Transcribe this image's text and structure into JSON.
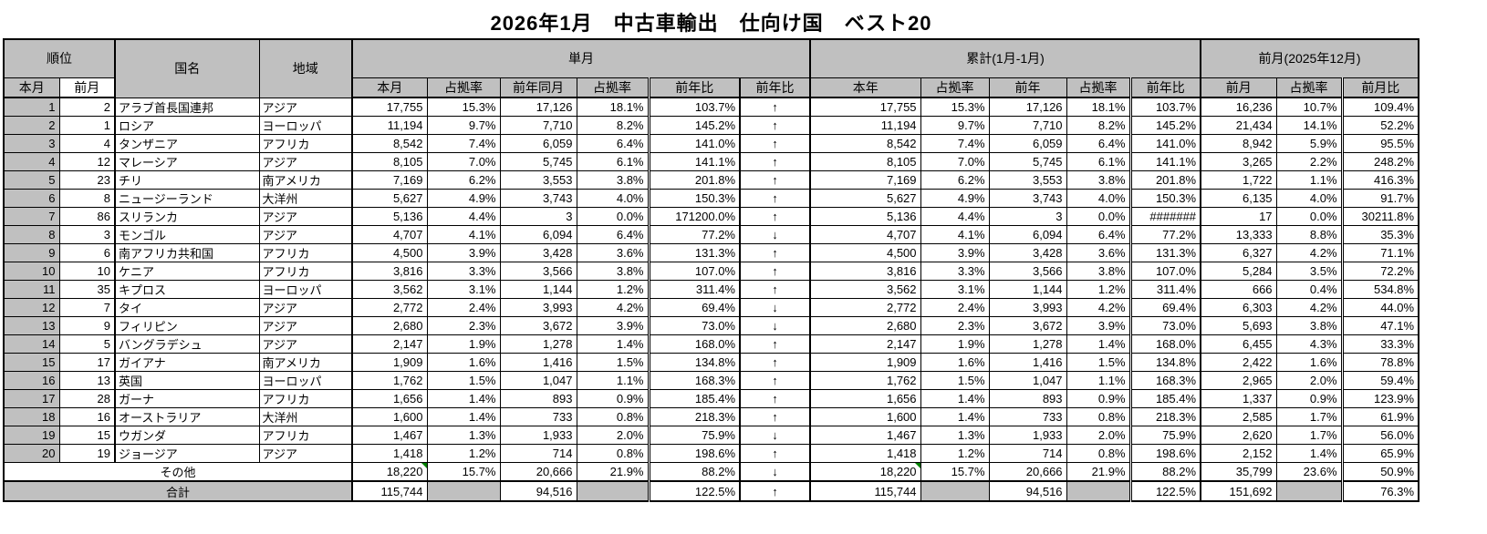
{
  "title": "2026年1月　中古車輸出　仕向け国　ベスト20",
  "colors": {
    "header_bg": "#c0c0c0",
    "shade_bg": "#c0c0c0",
    "marker_green": "#008000",
    "border": "#000000"
  },
  "header": {
    "rank_group": "順位",
    "rank_this": "本月",
    "rank_prev": "前月",
    "country": "国名",
    "region": "地域",
    "monthly_group": "単月",
    "cumulative_group": "累計(1月-1月)",
    "prev_month_group": "前月(2025年12月)",
    "monthly_cols": [
      "本月",
      "占拠率",
      "前年同月",
      "占拠率",
      "前年比",
      "前年比"
    ],
    "cumulative_cols": [
      "本年",
      "占拠率",
      "前年",
      "占拠率",
      "前年比"
    ],
    "prev_month_cols": [
      "前月",
      "占拠率",
      "前月比"
    ]
  },
  "rows": [
    [
      "1",
      "2",
      "アラブ首長国連邦",
      "アジア",
      "17,755",
      "15.3%",
      "17,126",
      "18.1%",
      "103.7%",
      "↑",
      "17,755",
      "15.3%",
      "17,126",
      "18.1%",
      "103.7%",
      "16,236",
      "10.7%",
      "109.4%"
    ],
    [
      "2",
      "1",
      "ロシア",
      "ヨーロッパ",
      "11,194",
      "9.7%",
      "7,710",
      "8.2%",
      "145.2%",
      "↑",
      "11,194",
      "9.7%",
      "7,710",
      "8.2%",
      "145.2%",
      "21,434",
      "14.1%",
      "52.2%"
    ],
    [
      "3",
      "4",
      "タンザニア",
      "アフリカ",
      "8,542",
      "7.4%",
      "6,059",
      "6.4%",
      "141.0%",
      "↑",
      "8,542",
      "7.4%",
      "6,059",
      "6.4%",
      "141.0%",
      "8,942",
      "5.9%",
      "95.5%"
    ],
    [
      "4",
      "12",
      "マレーシア",
      "アジア",
      "8,105",
      "7.0%",
      "5,745",
      "6.1%",
      "141.1%",
      "↑",
      "8,105",
      "7.0%",
      "5,745",
      "6.1%",
      "141.1%",
      "3,265",
      "2.2%",
      "248.2%"
    ],
    [
      "5",
      "23",
      "チリ",
      "南アメリカ",
      "7,169",
      "6.2%",
      "3,553",
      "3.8%",
      "201.8%",
      "↑",
      "7,169",
      "6.2%",
      "3,553",
      "3.8%",
      "201.8%",
      "1,722",
      "1.1%",
      "416.3%"
    ],
    [
      "6",
      "8",
      "ニュージーランド",
      "大洋州",
      "5,627",
      "4.9%",
      "3,743",
      "4.0%",
      "150.3%",
      "↑",
      "5,627",
      "4.9%",
      "3,743",
      "4.0%",
      "150.3%",
      "6,135",
      "4.0%",
      "91.7%"
    ],
    [
      "7",
      "86",
      "スリランカ",
      "アジア",
      "5,136",
      "4.4%",
      "3",
      "0.0%",
      "171200.0%",
      "↑",
      "5,136",
      "4.4%",
      "3",
      "0.0%",
      "#######",
      "17",
      "0.0%",
      "30211.8%"
    ],
    [
      "8",
      "3",
      "モンゴル",
      "アジア",
      "4,707",
      "4.1%",
      "6,094",
      "6.4%",
      "77.2%",
      "↓",
      "4,707",
      "4.1%",
      "6,094",
      "6.4%",
      "77.2%",
      "13,333",
      "8.8%",
      "35.3%"
    ],
    [
      "9",
      "6",
      "南アフリカ共和国",
      "アフリカ",
      "4,500",
      "3.9%",
      "3,428",
      "3.6%",
      "131.3%",
      "↑",
      "4,500",
      "3.9%",
      "3,428",
      "3.6%",
      "131.3%",
      "6,327",
      "4.2%",
      "71.1%"
    ],
    [
      "10",
      "10",
      "ケニア",
      "アフリカ",
      "3,816",
      "3.3%",
      "3,566",
      "3.8%",
      "107.0%",
      "↑",
      "3,816",
      "3.3%",
      "3,566",
      "3.8%",
      "107.0%",
      "5,284",
      "3.5%",
      "72.2%"
    ],
    [
      "11",
      "35",
      "キプロス",
      "ヨーロッパ",
      "3,562",
      "3.1%",
      "1,144",
      "1.2%",
      "311.4%",
      "↑",
      "3,562",
      "3.1%",
      "1,144",
      "1.2%",
      "311.4%",
      "666",
      "0.4%",
      "534.8%"
    ],
    [
      "12",
      "7",
      "タイ",
      "アジア",
      "2,772",
      "2.4%",
      "3,993",
      "4.2%",
      "69.4%",
      "↓",
      "2,772",
      "2.4%",
      "3,993",
      "4.2%",
      "69.4%",
      "6,303",
      "4.2%",
      "44.0%"
    ],
    [
      "13",
      "9",
      "フィリピン",
      "アジア",
      "2,680",
      "2.3%",
      "3,672",
      "3.9%",
      "73.0%",
      "↓",
      "2,680",
      "2.3%",
      "3,672",
      "3.9%",
      "73.0%",
      "5,693",
      "3.8%",
      "47.1%"
    ],
    [
      "14",
      "5",
      "バングラデシュ",
      "アジア",
      "2,147",
      "1.9%",
      "1,278",
      "1.4%",
      "168.0%",
      "↑",
      "2,147",
      "1.9%",
      "1,278",
      "1.4%",
      "168.0%",
      "6,455",
      "4.3%",
      "33.3%"
    ],
    [
      "15",
      "17",
      "ガイアナ",
      "南アメリカ",
      "1,909",
      "1.6%",
      "1,416",
      "1.5%",
      "134.8%",
      "↑",
      "1,909",
      "1.6%",
      "1,416",
      "1.5%",
      "134.8%",
      "2,422",
      "1.6%",
      "78.8%"
    ],
    [
      "16",
      "13",
      "英国",
      "ヨーロッパ",
      "1,762",
      "1.5%",
      "1,047",
      "1.1%",
      "168.3%",
      "↑",
      "1,762",
      "1.5%",
      "1,047",
      "1.1%",
      "168.3%",
      "2,965",
      "2.0%",
      "59.4%"
    ],
    [
      "17",
      "28",
      "ガーナ",
      "アフリカ",
      "1,656",
      "1.4%",
      "893",
      "0.9%",
      "185.4%",
      "↑",
      "1,656",
      "1.4%",
      "893",
      "0.9%",
      "185.4%",
      "1,337",
      "0.9%",
      "123.9%"
    ],
    [
      "18",
      "16",
      "オーストラリア",
      "大洋州",
      "1,600",
      "1.4%",
      "733",
      "0.8%",
      "218.3%",
      "↑",
      "1,600",
      "1.4%",
      "733",
      "0.8%",
      "218.3%",
      "2,585",
      "1.7%",
      "61.9%"
    ],
    [
      "19",
      "15",
      "ウガンダ",
      "アフリカ",
      "1,467",
      "1.3%",
      "1,933",
      "2.0%",
      "75.9%",
      "↓",
      "1,467",
      "1.3%",
      "1,933",
      "2.0%",
      "75.9%",
      "2,620",
      "1.7%",
      "56.0%"
    ],
    [
      "20",
      "19",
      "ジョージア",
      "アジア",
      "1,418",
      "1.2%",
      "714",
      "0.8%",
      "198.6%",
      "↑",
      "1,418",
      "1.2%",
      "714",
      "0.8%",
      "198.6%",
      "2,152",
      "1.4%",
      "65.9%"
    ]
  ],
  "others_row": {
    "label": "その他",
    "cells": [
      "18,220",
      "15.7%",
      "20,666",
      "21.9%",
      "88.2%",
      "↓",
      "18,220",
      "15.7%",
      "20,666",
      "21.9%",
      "88.2%",
      "35,799",
      "23.6%",
      "50.9%"
    ],
    "green_marker_cell_indexes": [
      0,
      6
    ]
  },
  "total_row": {
    "label": "合計",
    "cells": [
      "115,744",
      "",
      "94,516",
      "",
      "122.5%",
      "↑",
      "115,744",
      "",
      "94,516",
      "",
      "122.5%",
      "151,692",
      "",
      "76.3%"
    ],
    "shaded_cell_indexes": [
      1,
      3,
      7,
      9,
      12
    ]
  }
}
